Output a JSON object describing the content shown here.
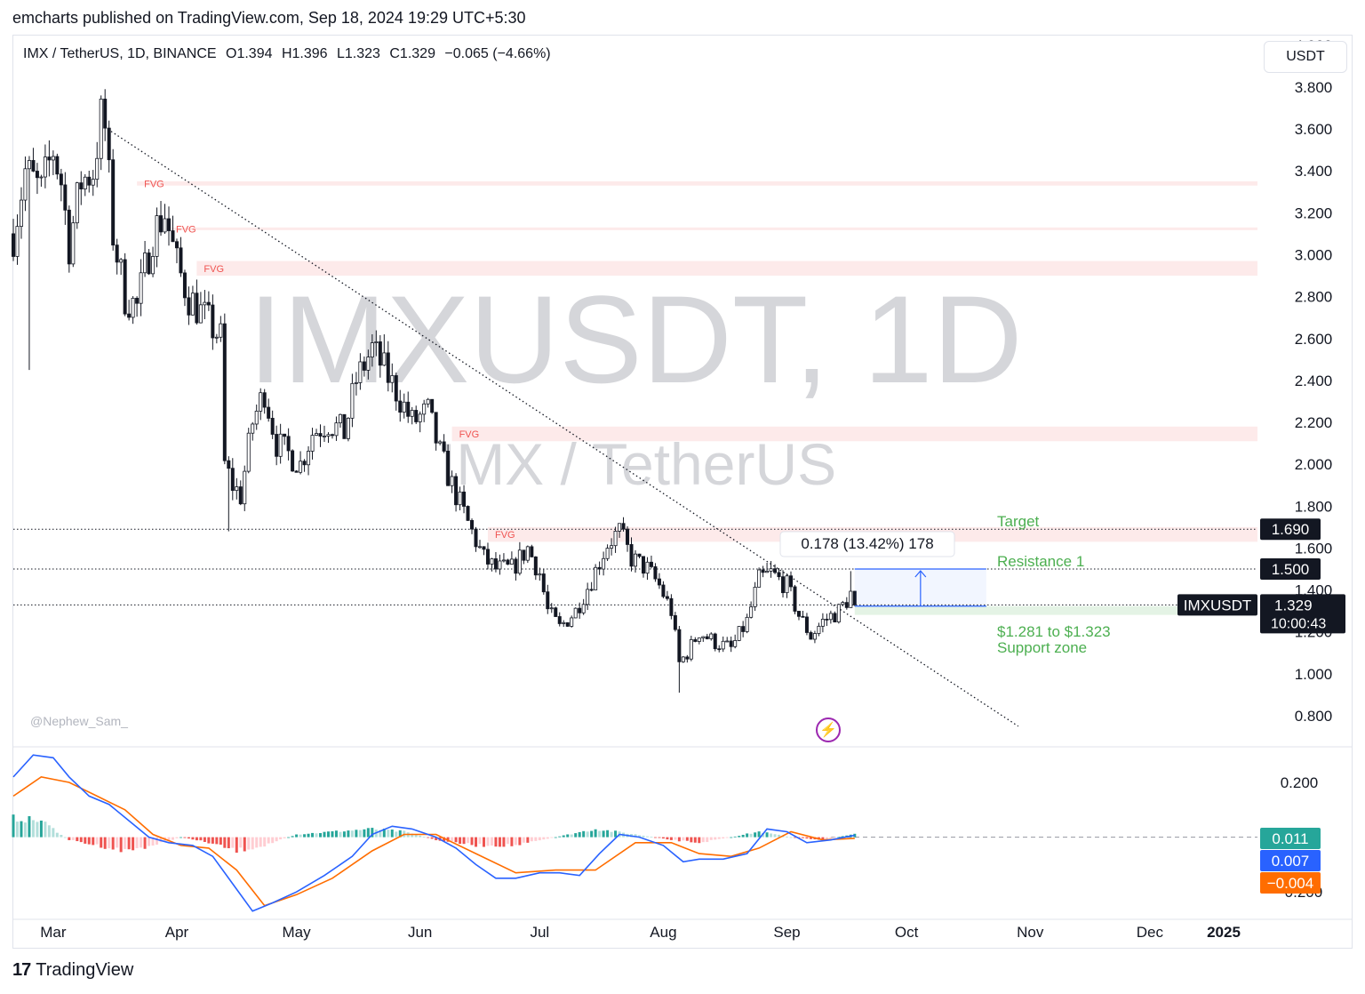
{
  "header": {
    "text": "emcharts published on TradingView.com, Sep 18, 2024 19:29 UTC+5:30"
  },
  "legend": {
    "symbol": "IMX / TetherUS, 1D, BINANCE",
    "open": "O1.394",
    "high": "H1.396",
    "low": "L1.323",
    "close": "C1.329",
    "change": "−0.065 (−4.66%)"
  },
  "currency_button": "USDT",
  "watermark": {
    "main": "IMXUSDT, 1D",
    "sub": "IMX / TetherUS",
    "author": "@Nephew_Sam_"
  },
  "footer": {
    "logo_mark": "17",
    "brand": "TradingView"
  },
  "colors": {
    "up": "#26a69a",
    "down": "#ef5350",
    "macd": "#2962ff",
    "signal": "#ff6d00",
    "fvg": "#ef5350",
    "annot_green": "#4caf50"
  },
  "chart_data": {
    "type": "candlestick",
    "price_axis": {
      "ticks": [
        "4.000",
        "3.800",
        "3.600",
        "3.400",
        "3.200",
        "3.000",
        "2.800",
        "2.600",
        "2.400",
        "2.200",
        "2.000",
        "1.800",
        "1.600",
        "1.400",
        "1.200",
        "1.000",
        "0.800"
      ],
      "ylim": [
        0.66,
        4.05
      ]
    },
    "time_axis": {
      "labels": [
        "Mar",
        "Apr",
        "May",
        "Jun",
        "Jul",
        "Aug",
        "Sep",
        "Oct",
        "Nov",
        "Dec",
        "2025"
      ],
      "range": [
        "2024-02-20",
        "2024-12-28"
      ]
    },
    "close_path": [
      [
        "2024-02-20",
        3.1
      ],
      [
        "2024-02-23",
        3.4
      ],
      [
        "2024-02-27",
        3.3
      ],
      [
        "2024-03-01",
        3.5
      ],
      [
        "2024-03-03",
        3.35
      ],
      [
        "2024-03-05",
        3.05
      ],
      [
        "2024-03-08",
        3.35
      ],
      [
        "2024-03-11",
        3.4
      ],
      [
        "2024-03-13",
        3.65
      ],
      [
        "2024-03-14",
        3.6
      ],
      [
        "2024-03-16",
        3.1
      ],
      [
        "2024-03-19",
        2.8
      ],
      [
        "2024-03-22",
        2.75
      ],
      [
        "2024-03-26",
        3.1
      ],
      [
        "2024-03-29",
        3.2
      ],
      [
        "2024-04-01",
        2.95
      ],
      [
        "2024-04-04",
        2.8
      ],
      [
        "2024-04-08",
        2.7
      ],
      [
        "2024-04-12",
        2.6
      ],
      [
        "2024-04-13",
        2.0
      ],
      [
        "2024-04-15",
        1.9
      ],
      [
        "2024-04-17",
        1.85
      ],
      [
        "2024-04-20",
        2.2
      ],
      [
        "2024-04-23",
        2.35
      ],
      [
        "2024-04-26",
        2.1
      ],
      [
        "2024-04-29",
        2.05
      ],
      [
        "2024-05-02",
        2.0
      ],
      [
        "2024-05-05",
        2.15
      ],
      [
        "2024-05-09",
        2.2
      ],
      [
        "2024-05-13",
        2.15
      ],
      [
        "2024-05-16",
        2.4
      ],
      [
        "2024-05-20",
        2.55
      ],
      [
        "2024-05-23",
        2.45
      ],
      [
        "2024-05-26",
        2.35
      ],
      [
        "2024-05-30",
        2.2
      ],
      [
        "2024-06-03",
        2.25
      ],
      [
        "2024-06-06",
        2.05
      ],
      [
        "2024-06-09",
        1.9
      ],
      [
        "2024-06-13",
        1.72
      ],
      [
        "2024-06-17",
        1.55
      ],
      [
        "2024-06-20",
        1.5
      ],
      [
        "2024-06-24",
        1.5
      ],
      [
        "2024-06-28",
        1.6
      ],
      [
        "2024-07-01",
        1.48
      ],
      [
        "2024-07-03",
        1.3
      ],
      [
        "2024-07-06",
        1.22
      ],
      [
        "2024-07-10",
        1.3
      ],
      [
        "2024-07-14",
        1.45
      ],
      [
        "2024-07-18",
        1.62
      ],
      [
        "2024-07-21",
        1.68
      ],
      [
        "2024-07-24",
        1.55
      ],
      [
        "2024-07-28",
        1.5
      ],
      [
        "2024-07-31",
        1.42
      ],
      [
        "2024-08-03",
        1.3
      ],
      [
        "2024-08-05",
        1.05
      ],
      [
        "2024-08-07",
        1.1
      ],
      [
        "2024-08-10",
        1.2
      ],
      [
        "2024-08-14",
        1.15
      ],
      [
        "2024-08-18",
        1.12
      ],
      [
        "2024-08-22",
        1.25
      ],
      [
        "2024-08-25",
        1.45
      ],
      [
        "2024-08-28",
        1.48
      ],
      [
        "2024-09-01",
        1.42
      ],
      [
        "2024-09-04",
        1.28
      ],
      [
        "2024-09-07",
        1.18
      ],
      [
        "2024-09-10",
        1.25
      ],
      [
        "2024-09-14",
        1.3
      ],
      [
        "2024-09-16",
        1.35
      ],
      [
        "2024-09-17",
        1.394
      ],
      [
        "2024-09-18",
        1.329
      ]
    ],
    "low_wicks": [
      [
        "2024-02-24",
        2.45
      ],
      [
        "2024-04-14",
        1.68
      ],
      [
        "2024-08-05",
        0.91
      ]
    ],
    "high_wicks": [
      [
        "2024-03-13",
        3.76
      ],
      [
        "2024-03-30",
        3.23
      ],
      [
        "2024-05-23",
        2.62
      ],
      [
        "2024-07-21",
        1.71
      ],
      [
        "2024-08-27",
        1.53
      ],
      [
        "2024-09-17",
        1.49
      ]
    ],
    "fvg_zones": [
      {
        "label": "FVG",
        "start": "2024-03-22",
        "low": 3.33,
        "high": 3.35
      },
      {
        "label": "FVG",
        "start": "2024-03-30",
        "low": 3.12,
        "high": 3.13
      },
      {
        "label": "FVG",
        "start": "2024-04-06",
        "low": 2.9,
        "high": 2.97
      },
      {
        "label": "FVG",
        "start": "2024-06-09",
        "low": 2.11,
        "high": 2.18
      },
      {
        "label": "FVG",
        "start": "2024-06-18",
        "low": 1.63,
        "high": 1.7
      }
    ],
    "levels": [
      {
        "price": 1.69,
        "label": "Target",
        "tag": "1.690"
      },
      {
        "price": 1.5,
        "label": "Resistance 1",
        "tag": "1.500"
      },
      {
        "price": 1.329,
        "label": "",
        "tag": "1.329"
      }
    ],
    "support_zone": {
      "low": 1.281,
      "high": 1.323,
      "label_1": "$1.281 to $1.323",
      "label_2": "Support zone"
    },
    "trendline": {
      "start": [
        "2024-03-13",
        3.62
      ],
      "end": [
        "2024-10-29",
        0.75
      ]
    },
    "measure": {
      "from": 1.323,
      "to": 1.5,
      "label": "0.178 (13.42%) 178"
    },
    "last_price": {
      "symbol": "IMXUSDT",
      "value": "1.329",
      "countdown": "10:00:43"
    },
    "macd": {
      "ticks": [
        "0.200",
        "−0.200"
      ],
      "ylim": [
        -0.3,
        0.33
      ],
      "macd_path": [
        [
          "2024-02-20",
          0.22
        ],
        [
          "2024-02-25",
          0.3
        ],
        [
          "2024-03-01",
          0.29
        ],
        [
          "2024-03-05",
          0.22
        ],
        [
          "2024-03-10",
          0.15
        ],
        [
          "2024-03-15",
          0.12
        ],
        [
          "2024-03-20",
          0.06
        ],
        [
          "2024-03-25",
          0.0
        ],
        [
          "2024-03-30",
          -0.02
        ],
        [
          "2024-04-05",
          -0.03
        ],
        [
          "2024-04-10",
          -0.07
        ],
        [
          "2024-04-15",
          -0.17
        ],
        [
          "2024-04-20",
          -0.27
        ],
        [
          "2024-04-25",
          -0.24
        ],
        [
          "2024-05-01",
          -0.2
        ],
        [
          "2024-05-08",
          -0.14
        ],
        [
          "2024-05-15",
          -0.07
        ],
        [
          "2024-05-20",
          0.01
        ],
        [
          "2024-05-25",
          0.04
        ],
        [
          "2024-05-30",
          0.03
        ],
        [
          "2024-06-05",
          0.0
        ],
        [
          "2024-06-10",
          -0.04
        ],
        [
          "2024-06-15",
          -0.1
        ],
        [
          "2024-06-20",
          -0.15
        ],
        [
          "2024-06-25",
          -0.15
        ],
        [
          "2024-07-01",
          -0.13
        ],
        [
          "2024-07-06",
          -0.13
        ],
        [
          "2024-07-11",
          -0.14
        ],
        [
          "2024-07-16",
          -0.06
        ],
        [
          "2024-07-21",
          0.01
        ],
        [
          "2024-07-26",
          0.0
        ],
        [
          "2024-08-01",
          -0.03
        ],
        [
          "2024-08-06",
          -0.09
        ],
        [
          "2024-08-10",
          -0.08
        ],
        [
          "2024-08-16",
          -0.08
        ],
        [
          "2024-08-22",
          -0.06
        ],
        [
          "2024-08-27",
          0.03
        ],
        [
          "2024-09-01",
          0.02
        ],
        [
          "2024-09-06",
          -0.02
        ],
        [
          "2024-09-12",
          -0.01
        ],
        [
          "2024-09-18",
          0.007
        ]
      ],
      "signal_path": [
        [
          "2024-02-20",
          0.15
        ],
        [
          "2024-02-27",
          0.22
        ],
        [
          "2024-03-05",
          0.2
        ],
        [
          "2024-03-12",
          0.15
        ],
        [
          "2024-03-19",
          0.1
        ],
        [
          "2024-03-26",
          0.01
        ],
        [
          "2024-04-02",
          -0.03
        ],
        [
          "2024-04-09",
          -0.04
        ],
        [
          "2024-04-16",
          -0.12
        ],
        [
          "2024-04-23",
          -0.25
        ],
        [
          "2024-05-01",
          -0.21
        ],
        [
          "2024-05-10",
          -0.15
        ],
        [
          "2024-05-20",
          -0.05
        ],
        [
          "2024-05-28",
          0.01
        ],
        [
          "2024-06-05",
          0.01
        ],
        [
          "2024-06-15",
          -0.06
        ],
        [
          "2024-06-25",
          -0.13
        ],
        [
          "2024-07-05",
          -0.12
        ],
        [
          "2024-07-15",
          -0.12
        ],
        [
          "2024-07-25",
          -0.02
        ],
        [
          "2024-08-03",
          -0.02
        ],
        [
          "2024-08-10",
          -0.06
        ],
        [
          "2024-08-18",
          -0.07
        ],
        [
          "2024-08-25",
          -0.04
        ],
        [
          "2024-09-02",
          0.02
        ],
        [
          "2024-09-10",
          -0.01
        ],
        [
          "2024-09-18",
          -0.004
        ]
      ],
      "histogram": [
        [
          "2024-02-20",
          0.07
        ],
        [
          "2024-02-27",
          0.06
        ],
        [
          "2024-03-05",
          -0.01
        ],
        [
          "2024-03-12",
          -0.03
        ],
        [
          "2024-03-19",
          -0.05
        ],
        [
          "2024-03-26",
          -0.03
        ],
        [
          "2024-04-02",
          0.0
        ],
        [
          "2024-04-09",
          -0.02
        ],
        [
          "2024-04-16",
          -0.05
        ],
        [
          "2024-04-23",
          -0.03
        ],
        [
          "2024-05-01",
          0.01
        ],
        [
          "2024-05-10",
          0.02
        ],
        [
          "2024-05-20",
          0.03
        ],
        [
          "2024-05-28",
          0.02
        ],
        [
          "2024-06-05",
          -0.01
        ],
        [
          "2024-06-15",
          -0.03
        ],
        [
          "2024-06-25",
          -0.03
        ],
        [
          "2024-07-05",
          0.0
        ],
        [
          "2024-07-15",
          0.03
        ],
        [
          "2024-07-25",
          0.01
        ],
        [
          "2024-08-03",
          -0.01
        ],
        [
          "2024-08-10",
          -0.02
        ],
        [
          "2024-08-18",
          0.0
        ],
        [
          "2024-08-25",
          0.02
        ],
        [
          "2024-09-02",
          0.0
        ],
        [
          "2024-09-10",
          -0.01
        ],
        [
          "2024-09-18",
          0.011
        ]
      ],
      "tags": [
        {
          "value": "0.011",
          "series": "histogram"
        },
        {
          "value": "0.007",
          "series": "macd"
        },
        {
          "value": "−0.004",
          "series": "signal"
        }
      ]
    }
  }
}
